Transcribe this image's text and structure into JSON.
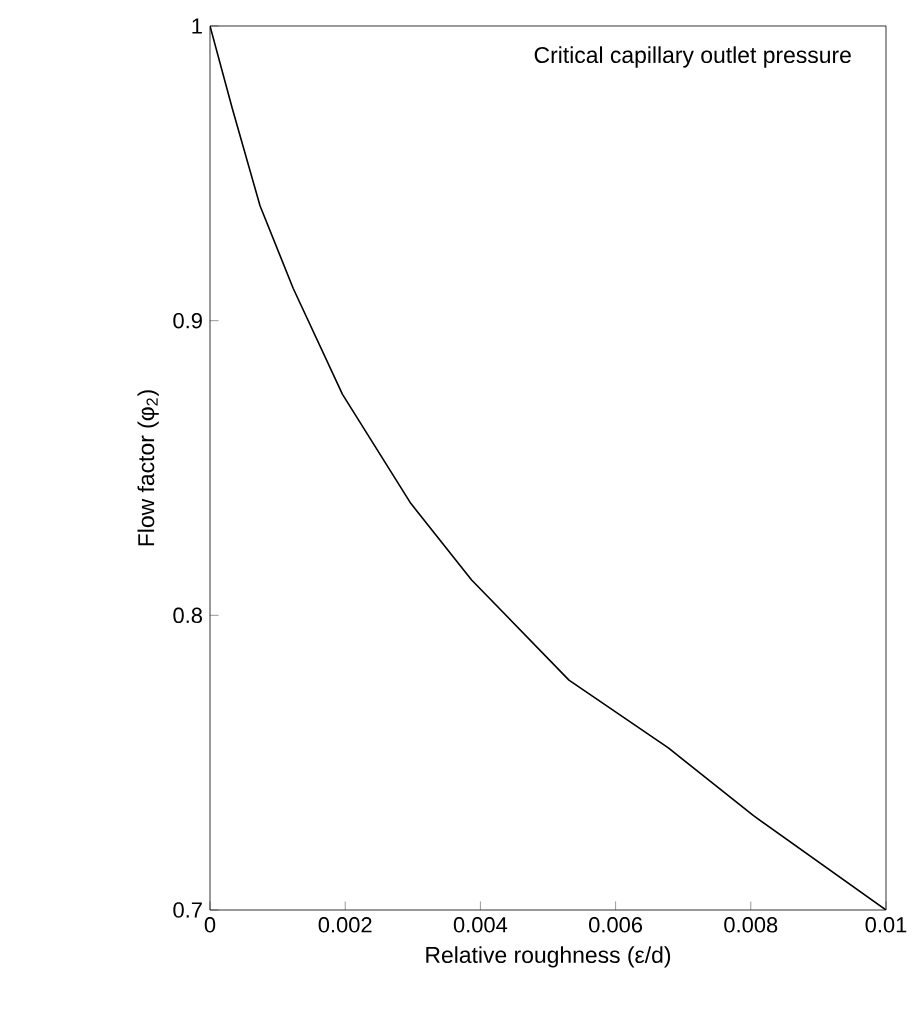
{
  "chart_data": {
    "type": "line",
    "xlabel": "Relative roughness (ε/d)",
    "ylabel": "Flow factor (φ$_{2}$)",
    "annotations": [
      "Critical capillary outlet pressure"
    ],
    "x": [
      0,
      0.00033,
      0.00074,
      0.00123,
      0.00196,
      0.00297,
      0.00387,
      0.00531,
      0.00678,
      0.00804,
      0.01
    ],
    "series": [
      {
        "color": "#000000",
        "values": [
          1,
          0.972,
          0.939,
          0.911,
          0.875,
          0.838,
          0.812,
          0.778,
          0.755,
          0.732,
          0.7
        ]
      }
    ],
    "xlim": [
      0,
      0.01
    ],
    "ylim": [
      0.7,
      1
    ],
    "xticks": [
      0,
      0.002,
      0.004,
      0.006,
      0.008,
      0.01
    ],
    "yticks": [
      0.7,
      0.8,
      0.9,
      1
    ],
    "grid": false,
    "marker": "none",
    "line_style": "solid"
  }
}
